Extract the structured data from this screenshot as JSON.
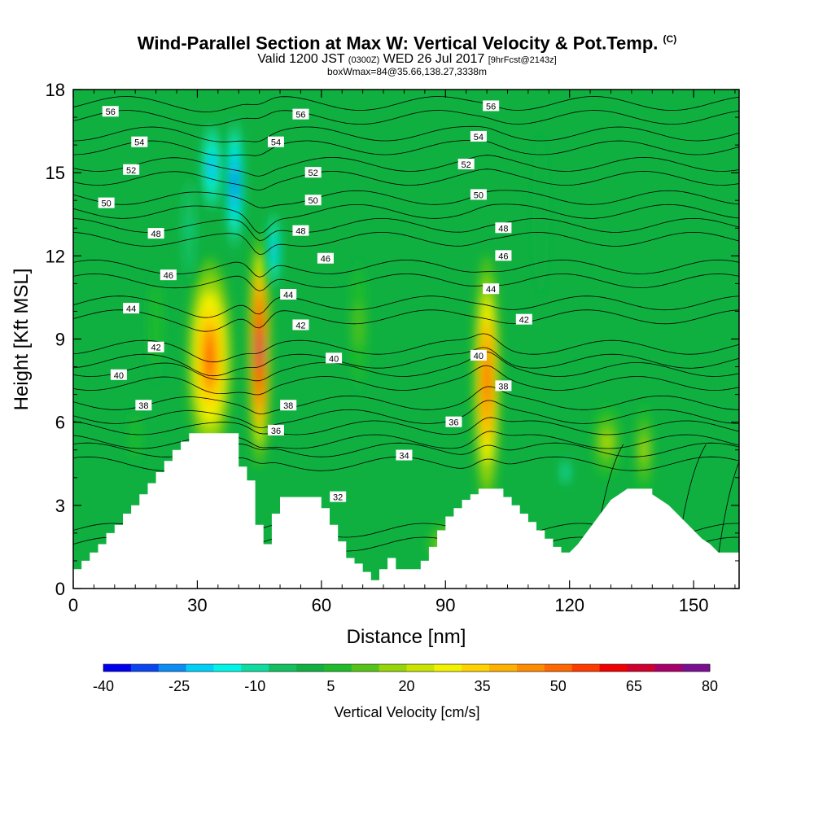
{
  "chart_data": {
    "type": "heatmap",
    "title": "Wind-Parallel Section at Max W: Vertical Velocity & Pot.Temp.",
    "title_mark": "(C)",
    "subtitle_main": "Valid 1200 JST",
    "subtitle_utc": "(0300Z)",
    "subtitle_date": "WED 26 Jul 2017",
    "subtitle_fcst": "[9hrFcst@2143z]",
    "subtitle2": "boxWmax=84@35.66,138.27,3338m",
    "xlabel": "Distance [nm]",
    "ylabel": "Height [Kft MSL]",
    "xlim": [
      0,
      161
    ],
    "ylim": [
      0,
      18
    ],
    "xticks": [
      "0",
      "30",
      "60",
      "90",
      "120",
      "150"
    ],
    "yticks": [
      "0",
      "3",
      "6",
      "9",
      "12",
      "15",
      "18"
    ],
    "colorbar": {
      "title": "Vertical Velocity [cm/s]",
      "labels": [
        "-40",
        "-25",
        "-10",
        "5",
        "20",
        "35",
        "50",
        "65",
        "80"
      ],
      "colors": [
        "#0000ee",
        "#0a46f0",
        "#0c8cf5",
        "#00d0f8",
        "#00f5e6",
        "#10dca0",
        "#12c060",
        "#10b040",
        "#1fbb2a",
        "#55c416",
        "#96d508",
        "#c8e400",
        "#f2f200",
        "#ffd200",
        "#ffb000",
        "#ff8c00",
        "#ff6800",
        "#ff3a00",
        "#f00000",
        "#d0002e",
        "#a8006a",
        "#7a1090"
      ]
    },
    "terrain": [
      [
        0,
        0.7
      ],
      [
        2,
        0.7
      ],
      [
        2,
        1.0
      ],
      [
        4,
        1.0
      ],
      [
        4,
        1.3
      ],
      [
        6,
        1.3
      ],
      [
        6,
        1.6
      ],
      [
        8,
        1.6
      ],
      [
        8,
        2.0
      ],
      [
        10,
        2.0
      ],
      [
        10,
        2.3
      ],
      [
        12,
        2.3
      ],
      [
        12,
        2.7
      ],
      [
        14,
        2.7
      ],
      [
        14,
        3.0
      ],
      [
        16,
        3.0
      ],
      [
        16,
        3.4
      ],
      [
        18,
        3.4
      ],
      [
        18,
        3.8
      ],
      [
        20,
        3.8
      ],
      [
        20,
        4.2
      ],
      [
        22,
        4.2
      ],
      [
        22,
        4.6
      ],
      [
        24,
        4.6
      ],
      [
        24,
        5.0
      ],
      [
        26,
        5.0
      ],
      [
        26,
        5.3
      ],
      [
        28,
        5.3
      ],
      [
        28,
        5.6
      ],
      [
        36,
        5.6
      ],
      [
        36,
        5.6
      ],
      [
        40,
        5.6
      ],
      [
        40,
        4.4
      ],
      [
        42,
        4.4
      ],
      [
        42,
        3.9
      ],
      [
        44,
        3.9
      ],
      [
        44,
        2.3
      ],
      [
        46,
        2.3
      ],
      [
        46,
        1.6
      ],
      [
        48,
        1.6
      ],
      [
        48,
        2.7
      ],
      [
        50,
        2.7
      ],
      [
        50,
        3.3
      ],
      [
        60,
        3.3
      ],
      [
        60,
        2.9
      ],
      [
        62,
        2.9
      ],
      [
        62,
        2.3
      ],
      [
        64,
        2.3
      ],
      [
        64,
        1.7
      ],
      [
        66,
        1.7
      ],
      [
        66,
        1.1
      ],
      [
        68,
        1.1
      ],
      [
        68,
        0.9
      ],
      [
        70,
        0.9
      ],
      [
        70,
        0.6
      ],
      [
        72,
        0.6
      ],
      [
        72,
        0.3
      ],
      [
        74,
        0.3
      ],
      [
        74,
        0.7
      ],
      [
        76,
        0.7
      ],
      [
        76,
        1.1
      ],
      [
        78,
        1.1
      ],
      [
        78,
        0.7
      ],
      [
        84,
        0.7
      ],
      [
        84,
        1.0
      ],
      [
        86,
        1.0
      ],
      [
        86,
        1.5
      ],
      [
        88,
        1.5
      ],
      [
        88,
        2.1
      ],
      [
        90,
        2.1
      ],
      [
        90,
        2.6
      ],
      [
        92,
        2.6
      ],
      [
        92,
        2.9
      ],
      [
        94,
        2.9
      ],
      [
        94,
        3.2
      ],
      [
        96,
        3.2
      ],
      [
        96,
        3.4
      ],
      [
        98,
        3.4
      ],
      [
        98,
        3.6
      ],
      [
        104,
        3.6
      ],
      [
        104,
        3.3
      ],
      [
        106,
        3.3
      ],
      [
        106,
        3.0
      ],
      [
        108,
        3.0
      ],
      [
        108,
        2.7
      ],
      [
        110,
        2.7
      ],
      [
        110,
        2.4
      ],
      [
        112,
        2.4
      ],
      [
        112,
        2.1
      ],
      [
        114,
        2.1
      ],
      [
        114,
        1.8
      ],
      [
        116,
        1.8
      ],
      [
        116,
        1.5
      ],
      [
        118,
        1.5
      ],
      [
        118,
        1.3
      ],
      [
        120,
        1.3
      ],
      [
        120,
        1.3
      ]
    ],
    "cells": [
      {
        "x": 33,
        "y": 8.3,
        "rx": 5.5,
        "ry": 3.6,
        "v": 50
      },
      {
        "x": 45,
        "y": 8.6,
        "rx": 2.6,
        "ry": 4.2,
        "v": 72
      },
      {
        "x": 100,
        "y": 7.5,
        "rx": 3.2,
        "ry": 4.5,
        "v": 55
      },
      {
        "x": 33.5,
        "y": 15.2,
        "rx": 2.6,
        "ry": 1.6,
        "v": -25
      },
      {
        "x": 39,
        "y": 14.6,
        "rx": 2.2,
        "ry": 2.4,
        "v": -35
      },
      {
        "x": 48.5,
        "y": 12.2,
        "rx": 1.6,
        "ry": 1.4,
        "v": -25
      },
      {
        "x": 119,
        "y": 4.2,
        "rx": 1.5,
        "ry": 0.6,
        "v": -12
      },
      {
        "x": 129,
        "y": 5.3,
        "rx": 3.5,
        "ry": 1.3,
        "v": 20
      },
      {
        "x": 138,
        "y": 5.0,
        "rx": 2.2,
        "ry": 1.6,
        "v": 20
      },
      {
        "x": 90,
        "y": 1.6,
        "rx": 4.5,
        "ry": 0.8,
        "v": 18
      },
      {
        "x": 69,
        "y": 9.5,
        "rx": 2.5,
        "ry": 2.5,
        "v": 12
      },
      {
        "x": 20,
        "y": 9.5,
        "rx": 2.5,
        "ry": 2.2,
        "v": 8
      },
      {
        "x": 15,
        "y": 5.5,
        "rx": 2.0,
        "ry": 1.2,
        "v": 8
      },
      {
        "x": 113,
        "y": 13.5,
        "rx": 2.0,
        "ry": 3.0,
        "v": 0
      },
      {
        "x": 28,
        "y": 13.0,
        "rx": 2.0,
        "ry": 2.0,
        "v": -8
      }
    ],
    "isentropes": [
      {
        "label": "32",
        "base": 1.6,
        "label_x": 64,
        "label_y": 3.3
      },
      {
        "label": "34",
        "base": 4.5,
        "label_x": 80,
        "label_y": 4.8
      },
      {
        "label": "36",
        "base": 5.3,
        "label_x": 49,
        "label_y": 5.7
      },
      {
        "label": "36",
        "base": 5.3,
        "label_x": 92,
        "label_y": 6.0
      },
      {
        "label": "38",
        "base": 6.2,
        "label_x": 17,
        "label_y": 6.6
      },
      {
        "label": "38",
        "base": 6.2,
        "label_x": 52,
        "label_y": 6.6
      },
      {
        "label": "38",
        "base": 6.2,
        "label_x": 104,
        "label_y": 7.3
      },
      {
        "label": "40",
        "base": 7.4,
        "label_x": 11,
        "label_y": 7.7
      },
      {
        "label": "40",
        "base": 7.4,
        "label_x": 63,
        "label_y": 8.3
      },
      {
        "label": "40",
        "base": 7.4,
        "label_x": 98,
        "label_y": 8.4
      },
      {
        "label": "42",
        "base": 8.2,
        "label_x": 20,
        "label_y": 8.7
      },
      {
        "label": "42",
        "base": 8.2,
        "label_x": 55,
        "label_y": 9.5
      },
      {
        "label": "42",
        "base": 8.2,
        "label_x": 109,
        "label_y": 9.7
      },
      {
        "label": "44",
        "base": 9.8,
        "label_x": 14,
        "label_y": 10.1
      },
      {
        "label": "44",
        "base": 9.8,
        "label_x": 52,
        "label_y": 10.6
      },
      {
        "label": "44",
        "base": 9.8,
        "label_x": 101,
        "label_y": 10.8
      },
      {
        "label": "46",
        "base": 11.1,
        "label_x": 23,
        "label_y": 11.3
      },
      {
        "label": "46",
        "base": 11.1,
        "label_x": 61,
        "label_y": 11.9
      },
      {
        "label": "46",
        "base": 11.1,
        "label_x": 104,
        "label_y": 12.0
      },
      {
        "label": "48",
        "base": 12.6,
        "label_x": 20,
        "label_y": 12.8
      },
      {
        "label": "48",
        "base": 12.6,
        "label_x": 55,
        "label_y": 12.9
      },
      {
        "label": "48",
        "base": 12.6,
        "label_x": 104,
        "label_y": 13.0
      },
      {
        "label": "50",
        "base": 13.6,
        "label_x": 8,
        "label_y": 13.9
      },
      {
        "label": "50",
        "base": 13.6,
        "label_x": 58,
        "label_y": 14.0
      },
      {
        "label": "50",
        "base": 13.6,
        "label_x": 98,
        "label_y": 14.2
      },
      {
        "label": "52",
        "base": 14.8,
        "label_x": 14,
        "label_y": 15.1
      },
      {
        "label": "52",
        "base": 14.8,
        "label_x": 58,
        "label_y": 15.0
      },
      {
        "label": "52",
        "base": 14.8,
        "label_x": 95,
        "label_y": 15.3
      },
      {
        "label": "54",
        "base": 15.9,
        "label_x": 16,
        "label_y": 16.1
      },
      {
        "label": "54",
        "base": 15.9,
        "label_x": 49,
        "label_y": 16.1
      },
      {
        "label": "54",
        "base": 15.9,
        "label_x": 98,
        "label_y": 16.3
      },
      {
        "label": "56",
        "base": 17.0,
        "label_x": 9,
        "label_y": 17.2
      },
      {
        "label": "56",
        "base": 17.0,
        "label_x": 55,
        "label_y": 17.1
      },
      {
        "label": "56",
        "base": 17.0,
        "label_x": 101,
        "label_y": 17.4
      }
    ]
  }
}
